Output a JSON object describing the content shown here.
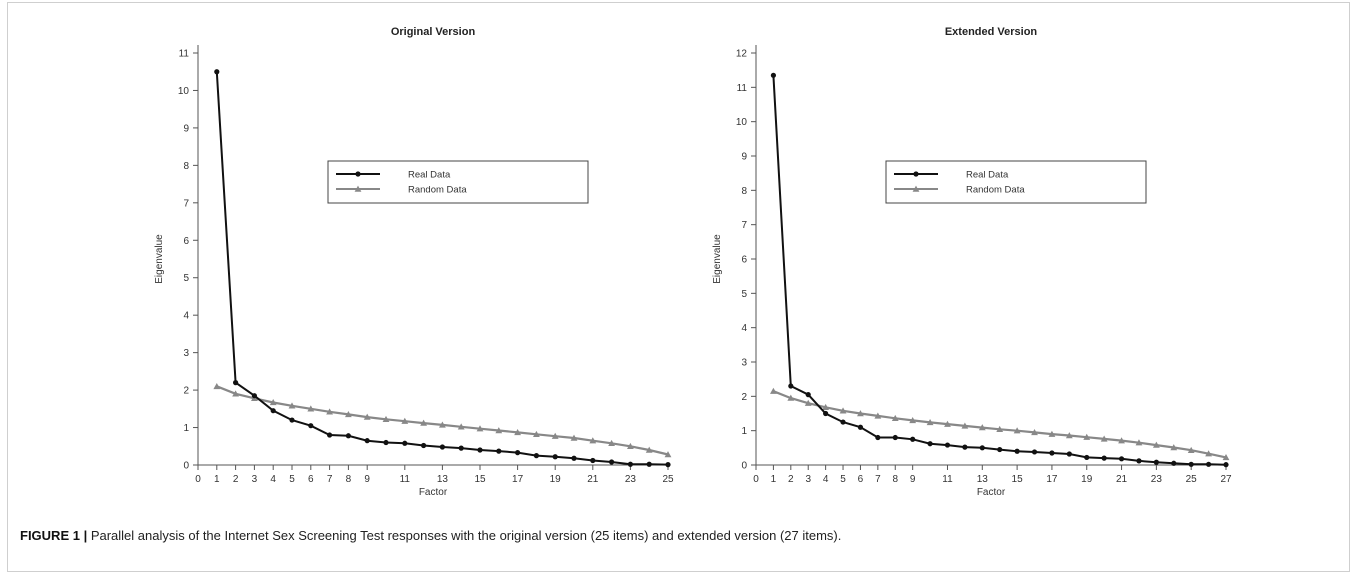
{
  "chart_data": [
    {
      "type": "line",
      "title": "Original Version",
      "xlabel": "Factor",
      "ylabel": "Eigenvalue",
      "xlim": [
        0,
        25
      ],
      "ylim": [
        0,
        11
      ],
      "x_ticks": [
        0,
        1,
        2,
        3,
        4,
        5,
        6,
        7,
        8,
        9,
        11,
        13,
        15,
        17,
        19,
        21,
        23,
        25
      ],
      "y_ticks": [
        0,
        1,
        2,
        3,
        4,
        5,
        6,
        7,
        8,
        9,
        10,
        11
      ],
      "legend_position": "center",
      "series": [
        {
          "name": "Real Data",
          "marker": "circle",
          "color": "#111111",
          "x": [
            1,
            2,
            3,
            4,
            5,
            6,
            7,
            8,
            9,
            10,
            11,
            12,
            13,
            14,
            15,
            16,
            17,
            18,
            19,
            20,
            21,
            22,
            23,
            24,
            25
          ],
          "values": [
            10.5,
            2.2,
            1.85,
            1.45,
            1.2,
            1.05,
            0.8,
            0.78,
            0.65,
            0.6,
            0.58,
            0.52,
            0.48,
            0.45,
            0.4,
            0.37,
            0.33,
            0.25,
            0.22,
            0.18,
            0.12,
            0.08,
            0.02,
            0.02,
            0.01
          ]
        },
        {
          "name": "Random Data",
          "marker": "triangle",
          "color": "#888888",
          "x": [
            1,
            2,
            3,
            4,
            5,
            6,
            7,
            8,
            9,
            10,
            11,
            12,
            13,
            14,
            15,
            16,
            17,
            18,
            19,
            20,
            21,
            22,
            23,
            24,
            25
          ],
          "values": [
            2.1,
            1.9,
            1.78,
            1.67,
            1.58,
            1.5,
            1.42,
            1.35,
            1.28,
            1.22,
            1.17,
            1.12,
            1.07,
            1.02,
            0.97,
            0.92,
            0.87,
            0.82,
            0.77,
            0.72,
            0.65,
            0.58,
            0.5,
            0.4,
            0.28
          ]
        }
      ]
    },
    {
      "type": "line",
      "title": "Extended Version",
      "xlabel": "Factor",
      "ylabel": "Eigenvalue",
      "xlim": [
        0,
        27
      ],
      "ylim": [
        0,
        12
      ],
      "x_ticks": [
        0,
        1,
        2,
        3,
        4,
        5,
        6,
        7,
        8,
        9,
        11,
        13,
        15,
        17,
        19,
        21,
        23,
        25,
        27
      ],
      "x_tick_labels": [
        "0",
        "1",
        "2",
        "3",
        "4",
        "5",
        "6",
        "7",
        "8",
        "9",
        "11",
        "13",
        "15",
        "17",
        "19",
        "21",
        "23",
        "25",
        "27"
      ],
      "y_ticks": [
        0,
        1,
        2,
        3,
        4,
        5,
        6,
        7,
        8,
        9,
        10,
        11,
        12
      ],
      "legend_position": "center",
      "series": [
        {
          "name": "Real Data",
          "marker": "circle",
          "color": "#111111",
          "x": [
            1,
            2,
            3,
            4,
            5,
            6,
            7,
            8,
            9,
            10,
            11,
            12,
            13,
            14,
            15,
            16,
            17,
            18,
            19,
            20,
            21,
            22,
            23,
            24,
            25,
            26,
            27
          ],
          "values": [
            11.35,
            2.3,
            2.05,
            1.5,
            1.25,
            1.1,
            0.8,
            0.8,
            0.75,
            0.62,
            0.58,
            0.52,
            0.5,
            0.45,
            0.4,
            0.38,
            0.35,
            0.32,
            0.22,
            0.2,
            0.18,
            0.12,
            0.08,
            0.05,
            0.02,
            0.02,
            0.01
          ]
        },
        {
          "name": "Random Data",
          "marker": "triangle",
          "color": "#888888",
          "x": [
            1,
            2,
            3,
            4,
            5,
            6,
            7,
            8,
            9,
            10,
            11,
            12,
            13,
            14,
            15,
            16,
            17,
            18,
            19,
            20,
            21,
            22,
            23,
            24,
            25,
            26,
            27
          ],
          "values": [
            2.15,
            1.95,
            1.8,
            1.68,
            1.58,
            1.5,
            1.43,
            1.36,
            1.3,
            1.24,
            1.19,
            1.14,
            1.09,
            1.04,
            1.0,
            0.95,
            0.9,
            0.86,
            0.81,
            0.76,
            0.71,
            0.65,
            0.58,
            0.51,
            0.43,
            0.33,
            0.22
          ]
        }
      ]
    }
  ],
  "caption": {
    "label": "FIGURE 1 |",
    "text": " Parallel analysis of the Internet Sex Screening Test responses with the original version (25 items) and extended version (27 items)."
  }
}
